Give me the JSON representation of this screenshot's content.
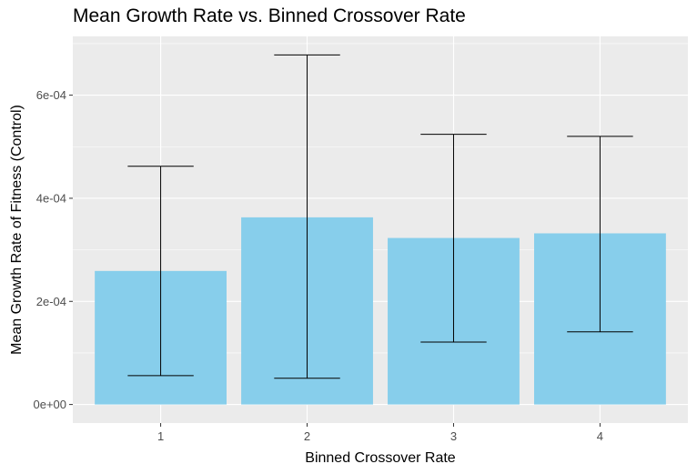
{
  "chart_data": {
    "type": "bar",
    "title": "Mean Growth Rate vs. Binned Crossover Rate",
    "xlabel": "Binned Crossover Rate",
    "ylabel": "Mean Growth Rate of Fitness (Control)",
    "categories": [
      "1",
      "2",
      "3",
      "4"
    ],
    "values": [
      0.000259,
      0.000363,
      0.000323,
      0.000332
    ],
    "error_low": [
      5.6e-05,
      5.1e-05,
      0.000121,
      0.000141
    ],
    "error_high": [
      0.000462,
      0.000678,
      0.000524,
      0.00052
    ],
    "y_ticks": [
      0,
      0.0002,
      0.0004,
      0.0006
    ],
    "y_tick_labels": [
      "0e+00",
      "2e-04",
      "4e-04",
      "6e-04"
    ],
    "ylim": [
      -3.6e-05,
      0.000714
    ],
    "bar_color": "#87CEEB",
    "panel_color": "#EBEBEB",
    "grid": true,
    "legend": "none"
  }
}
